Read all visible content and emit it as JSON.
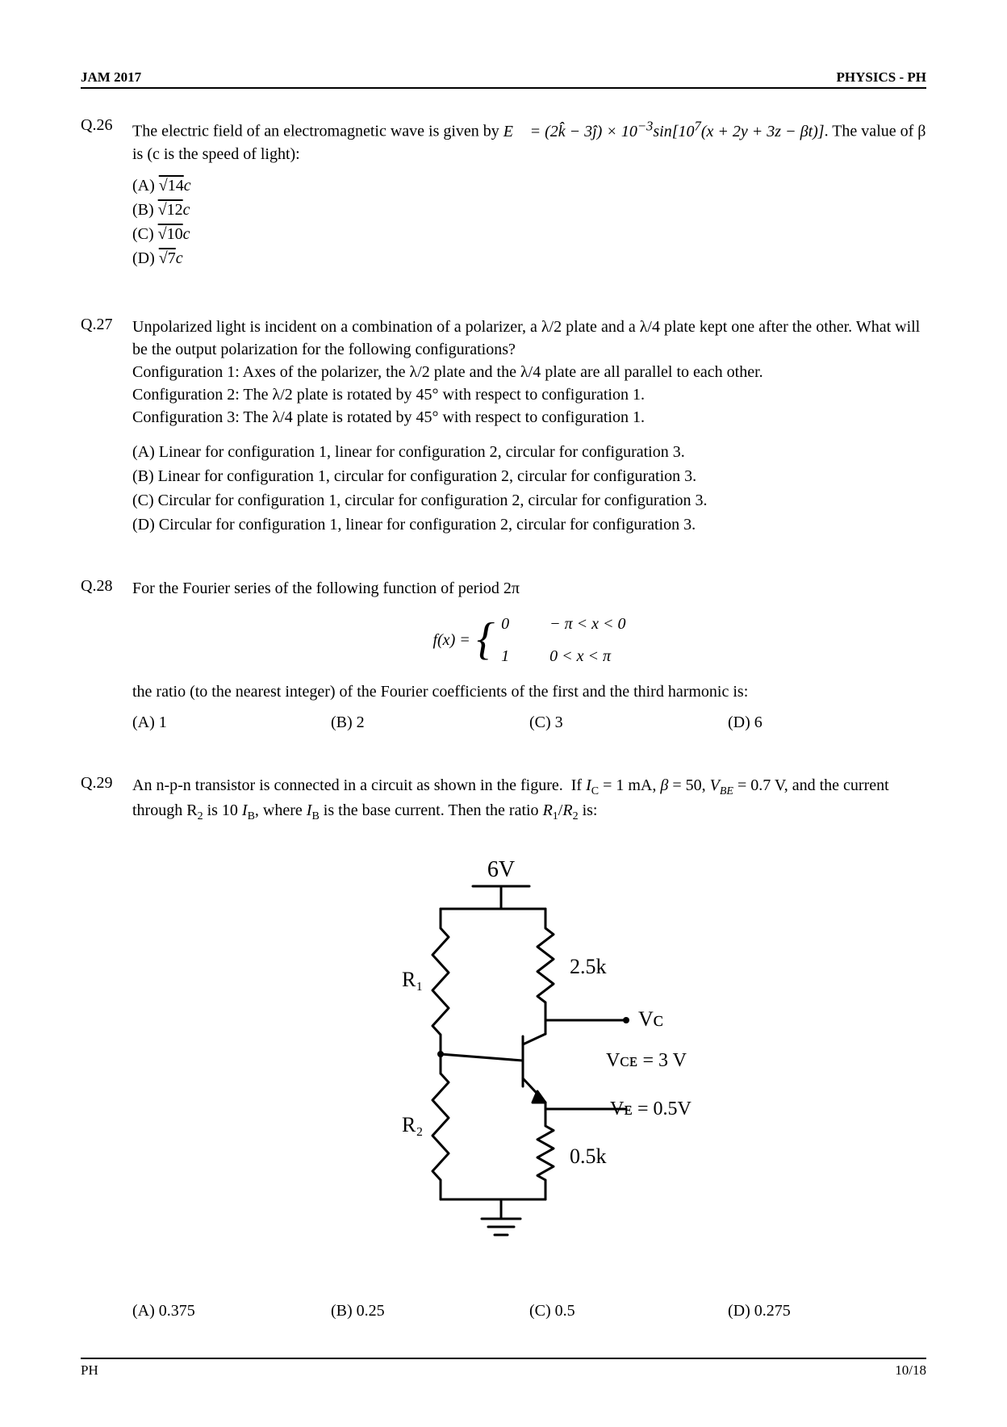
{
  "header": {
    "left": "JAM 2017",
    "right": "PHYSICS - PH"
  },
  "q26": {
    "num": "Q.26",
    "text_pre": "The electric field of an electromagnetic wave is given by ",
    "eq1": "E⃗ = (2k̂ − 3ĵ) × 10⁻³ sin[10⁷(x + 2y + 3z − βt)]",
    "text_post": ". The value of β is (c is the speed of light):",
    "opts": {
      "A": "(A) √14 c",
      "B": "(B) √12 c",
      "C": "(C) √10 c",
      "D": "(D) √7 c"
    }
  },
  "q27": {
    "num": "Q.27",
    "text": "Unpolarized light is incident on a combination of a polarizer, a λ/2 plate and a λ/4 plate kept one after the other. What will be the output polarization for the following configurations?",
    "cfg1": "Configuration 1: Axes of the polarizer, the λ/2 plate and the λ/4 plate are all parallel to each other.",
    "cfg2": "Configuration 2: The λ/2 plate is rotated by 45° with respect to configuration 1.",
    "cfg3": "Configuration 3: The λ/4 plate is rotated by 45° with respect to configuration 1.",
    "opts": {
      "A": "(A) Linear for configuration 1, linear for configuration 2, circular for configuration 3.",
      "B": "(B) Linear for configuration 1, circular for configuration 2, circular for configuration 3.",
      "C": "(C) Circular for configuration 1, circular for configuration 2, circular for configuration 3.",
      "D": "(D) Circular for configuration 1, linear for configuration 2, circular for configuration 3."
    }
  },
  "q28": {
    "num": "Q.28",
    "text1": "For the Fourier series of the following function of period 2π",
    "fx_label": "f(x) =",
    "case1_val": "0",
    "case1_cond": "− π < x < 0",
    "case2_val": "1",
    "case2_cond": "0 < x < π",
    "text2": "the ratio (to the nearest integer) of the Fourier coefficients of the first and the third harmonic is:",
    "opts": {
      "A": "(A) 1",
      "B": "(B) 2",
      "C": "(C)  3",
      "D": "(D)  6"
    }
  },
  "q29": {
    "num": "Q.29",
    "text": "An n-p-n transistor is connected in a circuit as shown in the figure.  If Iᴄ = 1 mA, β = 50, V_BE = 0.7 V, and the current through R₂ is 10 I_B, where I_B is the base current. Then the ratio R₁/R₂ is:",
    "opts": {
      "A": "(A) 0.375",
      "B": "(B) 0.25",
      "C": "(C)  0.5",
      "D": "(D)  0.275"
    },
    "circuit": {
      "supply": "6V",
      "R1": "R₁",
      "R2": "R₂",
      "Rc": "2.5k",
      "Re": "0.5k",
      "Vc": "Vᴄ",
      "Vce": "Vᴄᴇ = 3  V",
      "Ve": "Vᴇ = 0.5V",
      "stroke": "#000000",
      "stroke_width": 3,
      "font_family": "Times New Roman",
      "label_size": 24
    }
  },
  "footer": {
    "left": "PH",
    "right": "10/18"
  }
}
